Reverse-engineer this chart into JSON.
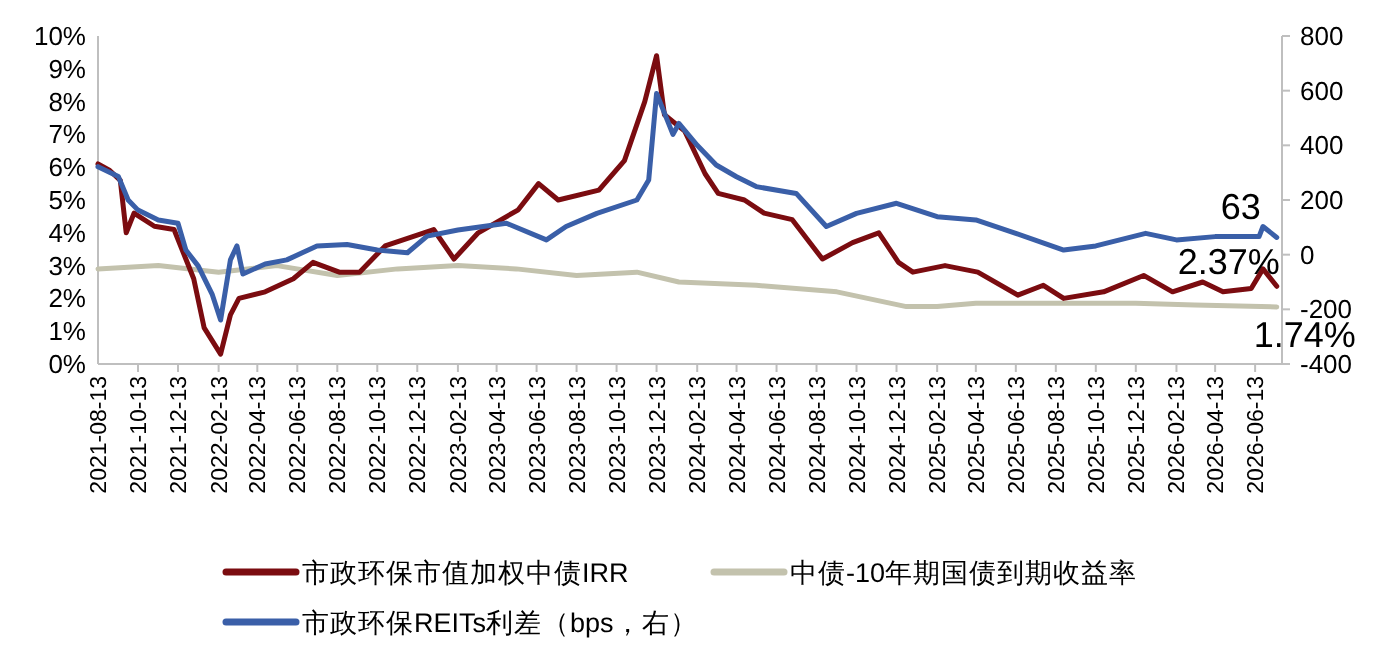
{
  "chart_data": {
    "type": "line",
    "xlim": [
      "2021-08-13",
      "2026-07-24"
    ],
    "xticks": [
      "2021-08-13",
      "2021-10-13",
      "2021-12-13",
      "2022-02-13",
      "2022-04-13",
      "2022-06-13",
      "2022-08-13",
      "2022-10-13",
      "2022-12-13",
      "2023-02-13",
      "2023-04-13",
      "2023-06-13",
      "2023-08-13",
      "2023-10-13",
      "2023-12-13",
      "2024-02-13",
      "2024-04-13",
      "2024-06-13",
      "2024-08-13",
      "2024-10-13",
      "2024-12-13",
      "2025-02-13",
      "2025-04-13",
      "2025-06-13",
      "2025-08-13",
      "2025-10-13",
      "2025-12-13",
      "2026-02-13",
      "2026-04-13",
      "2026-06-13"
    ],
    "ylim": [
      0,
      10
    ],
    "yticks": [
      {
        "value": 0,
        "label": "0%"
      },
      {
        "value": 1,
        "label": "1%"
      },
      {
        "value": 2,
        "label": "2%"
      },
      {
        "value": 3,
        "label": "3%"
      },
      {
        "value": 4,
        "label": "4%"
      },
      {
        "value": 5,
        "label": "5%"
      },
      {
        "value": 6,
        "label": "6%"
      },
      {
        "value": 7,
        "label": "7%"
      },
      {
        "value": 8,
        "label": "8%"
      },
      {
        "value": 9,
        "label": "9%"
      },
      {
        "value": 10,
        "label": "10%"
      }
    ],
    "y2lim": [
      -400,
      800
    ],
    "y2ticks": [
      -400,
      -200,
      0,
      200,
      400,
      600,
      800
    ],
    "grid": false,
    "legend": "bottom",
    "marker": "none",
    "line_style": "solid",
    "series": [
      {
        "name": "市政环保市值加权中债IRR",
        "color": "#7b0c10",
        "x": [
          "2021-08-13",
          "2021-08-31",
          "2021-09-16",
          "2021-09-25",
          "2021-10-07",
          "2021-11-07",
          "2021-12-07",
          "2021-12-25",
          "2022-01-06",
          "2022-01-22",
          "2022-02-16",
          "2022-03-03",
          "2022-03-16",
          "2022-04-25",
          "2022-06-07",
          "2022-07-07",
          "2022-08-16",
          "2022-09-16",
          "2022-10-25",
          "2023-01-07",
          "2023-02-07",
          "2023-03-16",
          "2023-05-16",
          "2023-06-16",
          "2023-07-16",
          "2023-09-16",
          "2023-10-25",
          "2023-11-25",
          "2023-12-13",
          "2023-12-25",
          "2024-01-25",
          "2024-02-25",
          "2024-03-16",
          "2024-04-25",
          "2024-05-25",
          "2024-07-07",
          "2024-08-22",
          "2024-10-07",
          "2024-11-16",
          "2024-12-16",
          "2025-01-07",
          "2025-02-25",
          "2025-04-16",
          "2025-06-16",
          "2025-07-25",
          "2025-08-25",
          "2025-10-25",
          "2025-12-25",
          "2026-02-07",
          "2026-03-25",
          "2026-04-25",
          "2026-06-07",
          "2026-06-25",
          "2026-07-16"
        ],
        "values": [
          6.1,
          5.9,
          5.6,
          4.0,
          4.6,
          4.2,
          4.1,
          3.2,
          2.6,
          1.1,
          0.3,
          1.5,
          2.0,
          2.2,
          2.6,
          3.1,
          2.8,
          2.8,
          3.6,
          4.1,
          3.2,
          4.0,
          4.7,
          5.5,
          5.0,
          5.3,
          6.2,
          8.0,
          9.4,
          7.6,
          7.1,
          5.8,
          5.2,
          5.0,
          4.6,
          4.4,
          3.2,
          3.7,
          4.0,
          3.1,
          2.8,
          3.0,
          2.8,
          2.1,
          2.4,
          2.0,
          2.2,
          2.7,
          2.2,
          2.5,
          2.2,
          2.3,
          2.9,
          2.37
        ],
        "value_labels": [
          null,
          null,
          null,
          null,
          null,
          null,
          null,
          null,
          null,
          null,
          null,
          null,
          null,
          null,
          null,
          null,
          null,
          null,
          null,
          null,
          null,
          null,
          null,
          null,
          null,
          null,
          null,
          null,
          null,
          null,
          null,
          null,
          null,
          null,
          null,
          null,
          null,
          null,
          null,
          null,
          null,
          null,
          null,
          null,
          null,
          null,
          null,
          null,
          null,
          null,
          null,
          null,
          null,
          "2.37%"
        ]
      },
      {
        "name": "中债-10年期国债到期收益率",
        "color": "#c3c2ad",
        "x": [
          "2021-08-13",
          "2021-11-13",
          "2022-02-13",
          "2022-05-13",
          "2022-08-13",
          "2022-11-13",
          "2023-02-13",
          "2023-05-13",
          "2023-08-13",
          "2023-11-13",
          "2024-01-16",
          "2024-05-13",
          "2024-09-13",
          "2024-12-28",
          "2025-02-13",
          "2025-04-13",
          "2025-08-13",
          "2025-12-13",
          "2026-03-13",
          "2026-07-16"
        ],
        "values": [
          2.9,
          3.0,
          2.8,
          3.0,
          2.7,
          2.9,
          3.0,
          2.9,
          2.7,
          2.8,
          2.5,
          2.4,
          2.2,
          1.75,
          1.75,
          1.85,
          1.85,
          1.85,
          1.8,
          1.74
        ],
        "value_labels": [
          null,
          null,
          null,
          null,
          null,
          null,
          null,
          null,
          null,
          null,
          null,
          null,
          null,
          null,
          null,
          null,
          null,
          null,
          null,
          "1.74%"
        ]
      },
      {
        "name": "市政环保REITs利差（bps，右）",
        "color": "#3a5fa8",
        "axis": "y2",
        "x": [
          "2021-08-13",
          "2021-09-13",
          "2021-09-28",
          "2021-10-13",
          "2021-11-13",
          "2021-12-13",
          "2021-12-25",
          "2022-01-13",
          "2022-02-03",
          "2022-02-16",
          "2022-03-03",
          "2022-03-13",
          "2022-03-22",
          "2022-04-25",
          "2022-05-28",
          "2022-07-13",
          "2022-08-28",
          "2022-10-13",
          "2022-11-28",
          "2022-12-28",
          "2023-02-13",
          "2023-04-28",
          "2023-06-28",
          "2023-07-28",
          "2023-09-13",
          "2023-11-13",
          "2023-12-01",
          "2023-12-13",
          "2024-01-07",
          "2024-01-16",
          "2024-02-13",
          "2024-03-13",
          "2024-04-13",
          "2024-05-13",
          "2024-07-13",
          "2024-08-28",
          "2024-10-13",
          "2024-12-13",
          "2025-02-13",
          "2025-04-13",
          "2025-06-13",
          "2025-08-25",
          "2025-10-13",
          "2025-12-28",
          "2026-02-13",
          "2026-04-13",
          "2026-06-19",
          "2026-06-25",
          "2026-07-16"
        ],
        "values": [
          322,
          286,
          200,
          163,
          127,
          115,
          17,
          -42,
          -144,
          -239,
          -19,
          32,
          -71,
          -34,
          -19,
          32,
          37,
          17,
          7,
          68,
          90,
          115,
          54,
          103,
          151,
          200,
          273,
          590,
          440,
          480,
          400,
          328,
          285,
          249,
          224,
          103,
          151,
          188,
          139,
          127,
          78,
          17,
          32,
          78,
          54,
          66,
          66,
          103,
          63
        ],
        "value_labels": [
          null,
          null,
          null,
          null,
          null,
          null,
          null,
          null,
          null,
          null,
          null,
          null,
          null,
          null,
          null,
          null,
          null,
          null,
          null,
          null,
          null,
          null,
          null,
          null,
          null,
          null,
          null,
          null,
          null,
          null,
          null,
          null,
          null,
          null,
          null,
          null,
          null,
          null,
          null,
          null,
          null,
          null,
          null,
          null,
          null,
          null,
          null,
          null,
          "63"
        ]
      }
    ]
  }
}
